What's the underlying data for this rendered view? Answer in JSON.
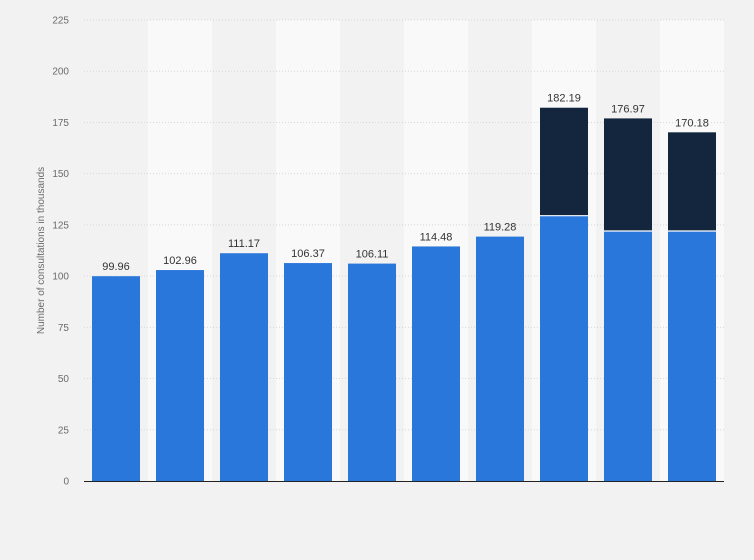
{
  "chart_data": {
    "type": "bar",
    "stacked": true,
    "ylabel": "Number of consultations in thousands",
    "ylim": [
      0,
      225
    ],
    "yticks": [
      0,
      25,
      50,
      75,
      100,
      125,
      150,
      175,
      200,
      225
    ],
    "grid": true,
    "legend": "none",
    "series": [
      {
        "values": [
          99.96,
          102.96,
          111.17,
          106.37,
          106.11,
          114.48,
          119.28,
          129.5,
          122.0,
          122.0
        ],
        "color": "#2a77dc"
      },
      {
        "values": [
          0,
          0,
          0,
          0,
          0,
          0,
          0,
          52.69,
          54.97,
          48.18
        ],
        "color": "#13263d"
      }
    ],
    "totals": [
      99.96,
      102.96,
      111.17,
      106.37,
      106.11,
      114.48,
      119.28,
      182.19,
      176.97,
      170.18
    ],
    "total_labels": [
      "99.96",
      "102.96",
      "111.17",
      "106.37",
      "106.11",
      "114.48",
      "119.28",
      "182.19",
      "176.97",
      "170.18"
    ]
  }
}
